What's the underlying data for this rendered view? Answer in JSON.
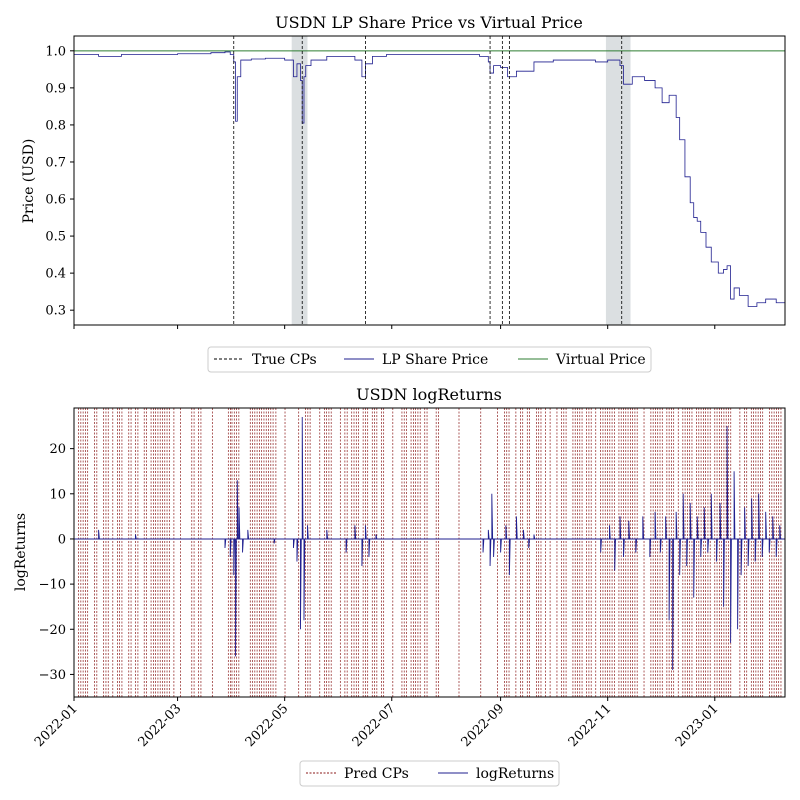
{
  "chart_data": [
    {
      "type": "line",
      "title": "USDN LP Share Price vs Virtual Price",
      "xlabel": "",
      "ylabel": "Price (USD)",
      "x_type": "date",
      "xlim": [
        "2022-01-01",
        "2023-02-10"
      ],
      "ylim": [
        0.26,
        1.04
      ],
      "yticks": [
        0.3,
        0.4,
        0.5,
        0.6,
        0.7,
        0.8,
        0.9,
        1.0
      ],
      "ytick_labels": [
        "0.3",
        "0.4",
        "0.5",
        "0.6",
        "0.7",
        "0.8",
        "0.9",
        "1.0"
      ],
      "xticks": [
        "2022-01-01",
        "2022-03-01",
        "2022-05-01",
        "2022-07-01",
        "2022-09-01",
        "2022-11-01",
        "2023-01-01"
      ],
      "grid": false,
      "legend": {
        "position": "bottom-center",
        "entries": [
          "True CPs",
          "LP Share Price",
          "Virtual Price"
        ]
      },
      "colors": {
        "lp_share_price": "#1f1f8f",
        "virtual_price": "#2e7d32",
        "true_cps": "#000000",
        "shaded_region": "#b0b8bc"
      },
      "true_cps": [
        "2022-04-02",
        "2022-05-11",
        "2022-06-16",
        "2022-08-26",
        "2022-09-02",
        "2022-09-06",
        "2022-11-09"
      ],
      "shaded_regions": [
        [
          "2022-05-05",
          "2022-05-14"
        ],
        [
          "2022-10-31",
          "2022-11-14"
        ]
      ],
      "series": [
        {
          "name": "LP Share Price",
          "x": [
            "2022-01-01",
            "2022-01-15",
            "2022-01-28",
            "2022-02-15",
            "2022-03-01",
            "2022-03-20",
            "2022-03-28",
            "2022-03-31",
            "2022-04-02",
            "2022-04-03",
            "2022-04-04",
            "2022-04-06",
            "2022-04-12",
            "2022-04-20",
            "2022-05-01",
            "2022-05-06",
            "2022-05-08",
            "2022-05-10",
            "2022-05-11",
            "2022-05-12",
            "2022-05-13",
            "2022-05-16",
            "2022-05-25",
            "2022-06-10",
            "2022-06-14",
            "2022-06-16",
            "2022-06-20",
            "2022-06-28",
            "2022-07-15",
            "2022-08-01",
            "2022-08-20",
            "2022-08-25",
            "2022-08-26",
            "2022-08-28",
            "2022-09-01",
            "2022-09-05",
            "2022-09-10",
            "2022-09-20",
            "2022-10-01",
            "2022-10-15",
            "2022-10-25",
            "2022-11-01",
            "2022-11-08",
            "2022-11-10",
            "2022-11-15",
            "2022-11-22",
            "2022-11-28",
            "2022-12-02",
            "2022-12-06",
            "2022-12-10",
            "2022-12-12",
            "2022-12-15",
            "2022-12-18",
            "2022-12-20",
            "2022-12-22",
            "2022-12-24",
            "2022-12-27",
            "2022-12-30",
            "2023-01-03",
            "2023-01-06",
            "2023-01-08",
            "2023-01-10",
            "2023-01-12",
            "2023-01-15",
            "2023-01-20",
            "2023-01-25",
            "2023-01-30",
            "2023-02-05",
            "2023-02-10"
          ],
          "values": [
            0.99,
            0.985,
            0.99,
            0.99,
            0.992,
            0.995,
            0.997,
            0.99,
            0.97,
            0.81,
            0.93,
            0.975,
            0.978,
            0.98,
            0.975,
            0.93,
            0.965,
            0.92,
            0.805,
            0.93,
            0.96,
            0.975,
            0.985,
            0.975,
            0.93,
            0.965,
            0.985,
            0.99,
            0.99,
            0.99,
            0.985,
            0.97,
            0.94,
            0.96,
            0.955,
            0.93,
            0.945,
            0.97,
            0.975,
            0.975,
            0.97,
            0.975,
            0.96,
            0.91,
            0.93,
            0.92,
            0.9,
            0.86,
            0.88,
            0.82,
            0.76,
            0.66,
            0.59,
            0.55,
            0.54,
            0.51,
            0.47,
            0.43,
            0.4,
            0.41,
            0.42,
            0.33,
            0.36,
            0.34,
            0.31,
            0.32,
            0.33,
            0.32,
            0.305
          ]
        },
        {
          "name": "Virtual Price",
          "x": [
            "2022-01-01",
            "2023-02-10"
          ],
          "values": [
            1.0,
            1.0
          ]
        }
      ]
    },
    {
      "type": "line",
      "title": "USDN logReturns",
      "xlabel": "",
      "ylabel": "logReturns",
      "x_type": "date",
      "xlim": [
        "2022-01-01",
        "2023-02-10"
      ],
      "ylim": [
        -35,
        29
      ],
      "yticks": [
        -30,
        -20,
        -10,
        0,
        10,
        20
      ],
      "ytick_labels": [
        "−30",
        "−20",
        "−10",
        "0",
        "10",
        "20"
      ],
      "xticks": [
        "2022-01-01",
        "2022-03-01",
        "2022-05-01",
        "2022-07-01",
        "2022-09-01",
        "2022-11-01",
        "2023-01-01"
      ],
      "xtick_labels": [
        "2022-01",
        "2022-03",
        "2022-05",
        "2022-07",
        "2022-09",
        "2022-11",
        "2023-01"
      ],
      "grid": false,
      "legend": {
        "position": "bottom-center",
        "entries": [
          "Pred CPs",
          "logReturns"
        ]
      },
      "colors": {
        "log_returns": "#1f1f8f",
        "pred_cps": "#8b1a1a"
      },
      "pred_cps_note_count": 260,
      "series": [
        {
          "name": "logReturns",
          "x": [
            "2022-01-15",
            "2022-02-05",
            "2022-03-28",
            "2022-03-31",
            "2022-04-02",
            "2022-04-03",
            "2022-04-04",
            "2022-04-05",
            "2022-04-07",
            "2022-04-10",
            "2022-04-25",
            "2022-05-06",
            "2022-05-08",
            "2022-05-10",
            "2022-05-11",
            "2022-05-12",
            "2022-05-14",
            "2022-05-25",
            "2022-06-05",
            "2022-06-10",
            "2022-06-14",
            "2022-06-16",
            "2022-06-18",
            "2022-06-22",
            "2022-08-22",
            "2022-08-25",
            "2022-08-26",
            "2022-08-27",
            "2022-08-28",
            "2022-09-01",
            "2022-09-04",
            "2022-09-06",
            "2022-09-10",
            "2022-09-14",
            "2022-09-17",
            "2022-09-20",
            "2022-10-28",
            "2022-11-02",
            "2022-11-05",
            "2022-11-08",
            "2022-11-10",
            "2022-11-13",
            "2022-11-17",
            "2022-11-21",
            "2022-11-25",
            "2022-11-28",
            "2022-12-01",
            "2022-12-04",
            "2022-12-06",
            "2022-12-08",
            "2022-12-10",
            "2022-12-12",
            "2022-12-14",
            "2022-12-16",
            "2022-12-18",
            "2022-12-20",
            "2022-12-22",
            "2022-12-24",
            "2022-12-26",
            "2022-12-28",
            "2022-12-30",
            "2023-01-02",
            "2023-01-04",
            "2023-01-06",
            "2023-01-08",
            "2023-01-10",
            "2023-01-12",
            "2023-01-14",
            "2023-01-16",
            "2023-01-18",
            "2023-01-20",
            "2023-01-22",
            "2023-01-24",
            "2023-01-26",
            "2023-01-28",
            "2023-01-30",
            "2023-02-01",
            "2023-02-03",
            "2023-02-05",
            "2023-02-07"
          ],
          "values": [
            2,
            1,
            -2,
            -4,
            -8,
            -26,
            13,
            7,
            -3,
            2,
            -1,
            -2,
            -5,
            -20,
            27,
            -18,
            3,
            2,
            -3,
            3,
            -6,
            3,
            -4,
            1,
            -3,
            2,
            -6,
            10,
            -4,
            -3,
            3,
            -8,
            5,
            2,
            -2,
            1,
            -3,
            3,
            -7,
            5,
            -4,
            4,
            -3,
            5,
            -4,
            6,
            -3,
            5,
            -18,
            -29,
            6,
            -8,
            10,
            -6,
            8,
            -13,
            5,
            -4,
            7,
            -3,
            10,
            -5,
            8,
            -15,
            25,
            -23,
            15,
            -20,
            -8,
            7,
            -6,
            9,
            -5,
            10,
            -4,
            6,
            -3,
            5,
            -4,
            3
          ]
        }
      ]
    }
  ]
}
